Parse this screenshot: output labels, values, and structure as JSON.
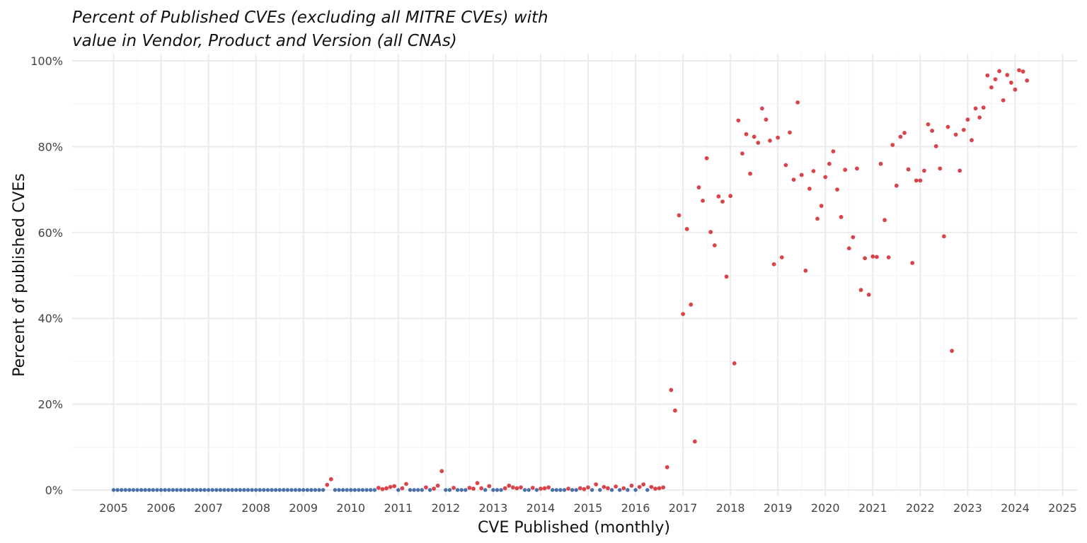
{
  "chart_data": {
    "type": "scatter",
    "title_line1": "Percent of Published CVEs (excluding all MITRE CVEs) with",
    "title_line2": "value in Vendor, Product and Version (all CNAs)",
    "xlabel": "CVE Published (monthly)",
    "ylabel": "Percent of published CVEs",
    "xlim": [
      2004.55,
      2025.3
    ],
    "ylim": [
      0,
      100
    ],
    "x_ticks": [
      "2005",
      "2006",
      "2007",
      "2008",
      "2009",
      "2010",
      "2011",
      "2012",
      "2013",
      "2014",
      "2015",
      "2016",
      "2017",
      "2018",
      "2019",
      "2020",
      "2021",
      "2022",
      "2023",
      "2024",
      "2025"
    ],
    "y_ticks": [
      "0%",
      "20%",
      "40%",
      "60%",
      "80%",
      "100%"
    ],
    "grid": true,
    "colors": {
      "zero": "#4a6ea8",
      "nonzero": "#d9434a"
    },
    "zero_series": {
      "description_start": "2005-01",
      "description_end": "2016-12",
      "value": 0
    },
    "points": [
      [
        "2009-07",
        1.2
      ],
      [
        "2009-08",
        2.5
      ],
      [
        "2010-08",
        0.5
      ],
      [
        "2010-09",
        0.2
      ],
      [
        "2010-10",
        0.4
      ],
      [
        "2010-11",
        0.7
      ],
      [
        "2010-12",
        0.9
      ],
      [
        "2011-02",
        0.4
      ],
      [
        "2011-03",
        1.4
      ],
      [
        "2011-08",
        0.6
      ],
      [
        "2011-10",
        0.3
      ],
      [
        "2011-11",
        1.0
      ],
      [
        "2011-12",
        4.4
      ],
      [
        "2012-03",
        0.5
      ],
      [
        "2012-07",
        0.5
      ],
      [
        "2012-08",
        0.3
      ],
      [
        "2012-09",
        1.6
      ],
      [
        "2012-10",
        0.4
      ],
      [
        "2012-12",
        0.9
      ],
      [
        "2013-04",
        0.4
      ],
      [
        "2013-05",
        1.0
      ],
      [
        "2013-06",
        0.6
      ],
      [
        "2013-07",
        0.4
      ],
      [
        "2013-08",
        0.6
      ],
      [
        "2013-11",
        0.5
      ],
      [
        "2014-01",
        0.3
      ],
      [
        "2014-02",
        0.4
      ],
      [
        "2014-03",
        0.6
      ],
      [
        "2014-08",
        0.3
      ],
      [
        "2014-11",
        0.4
      ],
      [
        "2014-12",
        0.2
      ],
      [
        "2015-01",
        0.6
      ],
      [
        "2015-03",
        1.3
      ],
      [
        "2015-05",
        0.7
      ],
      [
        "2015-06",
        0.4
      ],
      [
        "2015-08",
        0.8
      ],
      [
        "2015-10",
        0.4
      ],
      [
        "2015-12",
        1.0
      ],
      [
        "2016-02",
        0.7
      ],
      [
        "2016-03",
        1.3
      ],
      [
        "2016-05",
        0.7
      ],
      [
        "2016-06",
        0.3
      ],
      [
        "2016-07",
        0.4
      ],
      [
        "2016-08",
        0.6
      ],
      [
        "2016-09",
        5.3
      ],
      [
        "2016-10",
        23.3
      ],
      [
        "2016-11",
        18.5
      ],
      [
        "2016-12",
        64.0
      ],
      [
        "2017-01",
        41.0
      ],
      [
        "2017-02",
        60.8
      ],
      [
        "2017-03",
        43.2
      ],
      [
        "2017-04",
        11.3
      ],
      [
        "2017-05",
        70.5
      ],
      [
        "2017-06",
        67.4
      ],
      [
        "2017-07",
        77.3
      ],
      [
        "2017-08",
        60.1
      ],
      [
        "2017-09",
        57.0
      ],
      [
        "2017-10",
        68.4
      ],
      [
        "2017-11",
        67.2
      ],
      [
        "2017-12",
        49.7
      ],
      [
        "2018-01",
        68.5
      ],
      [
        "2018-02",
        29.5
      ],
      [
        "2018-03",
        86.1
      ],
      [
        "2018-04",
        78.4
      ],
      [
        "2018-05",
        82.9
      ],
      [
        "2018-06",
        73.7
      ],
      [
        "2018-07",
        82.3
      ],
      [
        "2018-08",
        80.9
      ],
      [
        "2018-09",
        88.9
      ],
      [
        "2018-10",
        86.3
      ],
      [
        "2018-11",
        81.4
      ],
      [
        "2018-12",
        52.6
      ],
      [
        "2019-01",
        82.1
      ],
      [
        "2019-02",
        54.2
      ],
      [
        "2019-03",
        75.7
      ],
      [
        "2019-04",
        83.3
      ],
      [
        "2019-05",
        72.3
      ],
      [
        "2019-06",
        90.3
      ],
      [
        "2019-07",
        73.4
      ],
      [
        "2019-08",
        51.1
      ],
      [
        "2019-09",
        70.2
      ],
      [
        "2019-10",
        74.3
      ],
      [
        "2019-11",
        63.2
      ],
      [
        "2019-12",
        66.2
      ],
      [
        "2020-01",
        72.9
      ],
      [
        "2020-02",
        76.0
      ],
      [
        "2020-03",
        78.9
      ],
      [
        "2020-04",
        70.0
      ],
      [
        "2020-05",
        63.6
      ],
      [
        "2020-06",
        74.6
      ],
      [
        "2020-07",
        56.3
      ],
      [
        "2020-08",
        58.9
      ],
      [
        "2020-09",
        74.9
      ],
      [
        "2020-10",
        46.6
      ],
      [
        "2020-11",
        54.0
      ],
      [
        "2020-12",
        45.5
      ],
      [
        "2021-01",
        54.4
      ],
      [
        "2021-02",
        54.3
      ],
      [
        "2021-03",
        76.0
      ],
      [
        "2021-04",
        62.9
      ],
      [
        "2021-05",
        54.2
      ],
      [
        "2021-06",
        80.4
      ],
      [
        "2021-07",
        70.9
      ],
      [
        "2021-08",
        82.3
      ],
      [
        "2021-09",
        83.2
      ],
      [
        "2021-10",
        74.7
      ],
      [
        "2021-11",
        52.9
      ],
      [
        "2021-12",
        72.1
      ],
      [
        "2022-01",
        72.1
      ],
      [
        "2022-02",
        74.4
      ],
      [
        "2022-03",
        85.2
      ],
      [
        "2022-04",
        83.7
      ],
      [
        "2022-05",
        80.1
      ],
      [
        "2022-06",
        74.9
      ],
      [
        "2022-07",
        59.1
      ],
      [
        "2022-08",
        84.6
      ],
      [
        "2022-09",
        32.4
      ],
      [
        "2022-10",
        82.8
      ],
      [
        "2022-11",
        74.4
      ],
      [
        "2022-12",
        83.9
      ],
      [
        "2023-01",
        86.3
      ],
      [
        "2023-02",
        81.5
      ],
      [
        "2023-03",
        88.9
      ],
      [
        "2023-04",
        86.8
      ],
      [
        "2023-05",
        89.1
      ],
      [
        "2023-06",
        96.6
      ],
      [
        "2023-07",
        93.8
      ],
      [
        "2023-08",
        95.7
      ],
      [
        "2023-09",
        97.6
      ],
      [
        "2023-10",
        90.8
      ],
      [
        "2023-11",
        96.7
      ],
      [
        "2023-12",
        94.9
      ],
      [
        "2024-01",
        93.3
      ],
      [
        "2024-02",
        97.8
      ],
      [
        "2024-03",
        97.5
      ],
      [
        "2024-04",
        95.4
      ]
    ]
  }
}
